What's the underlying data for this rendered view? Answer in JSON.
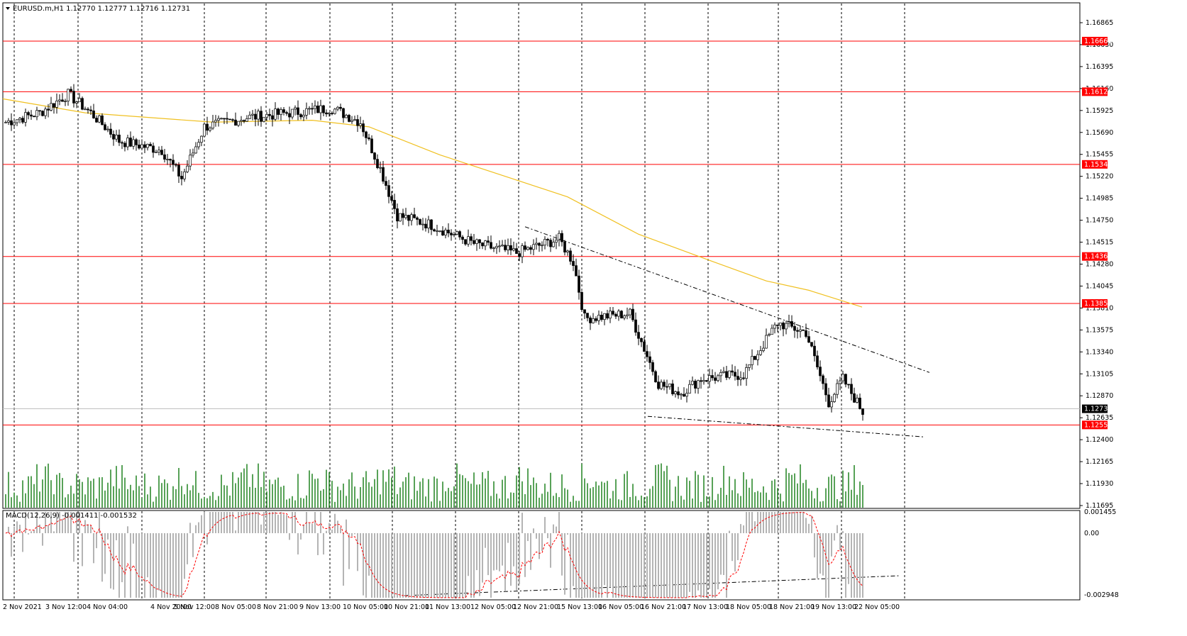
{
  "chart_data": {
    "type": "candlestick",
    "symbol_header": "EURUSD.m,H1  1.12770 1.12777 1.12716 1.12731",
    "price_axis": {
      "min": 1.11695,
      "max": 1.17,
      "tick_labels": [
        "1.16865",
        "1.16630",
        "1.16395",
        "1.16160",
        "1.15925",
        "1.15690",
        "1.15455",
        "1.15220",
        "1.14985",
        "1.14750",
        "1.14515",
        "1.14280",
        "1.14045",
        "1.13810",
        "1.13575",
        "1.13340",
        "1.13105",
        "1.12870",
        "1.12635",
        "1.12400",
        "1.12165",
        "1.11930",
        "1.11695"
      ]
    },
    "horizontal_levels": [
      {
        "price": 1.16668,
        "label": "1.16668",
        "color": "#ff0000"
      },
      {
        "price": 1.16126,
        "label": "1.16126",
        "color": "#ff0000"
      },
      {
        "price": 1.15348,
        "label": "1.15348",
        "color": "#ff0000"
      },
      {
        "price": 1.14362,
        "label": "1.14362",
        "color": "#ff0000"
      },
      {
        "price": 1.13859,
        "label": "1.13859",
        "color": "#ff0000"
      },
      {
        "price": 1.12558,
        "label": "1.12558",
        "color": "#ff0000"
      }
    ],
    "current_price": {
      "price": 1.12731,
      "label": "1.12731"
    },
    "time_labels": [
      "2 Nov 2021",
      "3 Nov 12:00",
      "4 Nov 04:00",
      "4 Nov 20:00",
      "5 Nov 12:00",
      "8 Nov 05:00",
      "8 Nov 21:00",
      "9 Nov 13:00",
      "10 Nov 05:00",
      "10 Nov 21:00",
      "11 Nov 13:00",
      "12 Nov 05:00",
      "12 Nov 21:00",
      "15 Nov 13:00",
      "16 Nov 05:00",
      "16 Nov 21:00",
      "17 Nov 13:00",
      "18 Nov 05:00",
      "18 Nov 21:00",
      "19 Nov 13:00",
      "22 Nov 05:00"
    ],
    "price_path_keypoints": [
      {
        "bar": 0,
        "price": 1.158
      },
      {
        "bar": 12,
        "price": 1.159
      },
      {
        "bar": 22,
        "price": 1.161
      },
      {
        "bar": 30,
        "price": 1.159
      },
      {
        "bar": 40,
        "price": 1.156
      },
      {
        "bar": 55,
        "price": 1.155
      },
      {
        "bar": 62,
        "price": 1.152
      },
      {
        "bar": 70,
        "price": 1.1575
      },
      {
        "bar": 85,
        "price": 1.1585
      },
      {
        "bar": 100,
        "price": 1.159
      },
      {
        "bar": 115,
        "price": 1.1595
      },
      {
        "bar": 125,
        "price": 1.158
      },
      {
        "bar": 132,
        "price": 1.153
      },
      {
        "bar": 138,
        "price": 1.148
      },
      {
        "bar": 150,
        "price": 1.147
      },
      {
        "bar": 165,
        "price": 1.145
      },
      {
        "bar": 180,
        "price": 1.144
      },
      {
        "bar": 195,
        "price": 1.1455
      },
      {
        "bar": 200,
        "price": 1.143
      },
      {
        "bar": 204,
        "price": 1.137
      },
      {
        "bar": 220,
        "price": 1.1375
      },
      {
        "bar": 230,
        "price": 1.13
      },
      {
        "bar": 238,
        "price": 1.129
      },
      {
        "bar": 245,
        "price": 1.1305
      },
      {
        "bar": 260,
        "price": 1.131
      },
      {
        "bar": 272,
        "price": 1.1365
      },
      {
        "bar": 282,
        "price": 1.1355
      },
      {
        "bar": 290,
        "price": 1.128
      },
      {
        "bar": 295,
        "price": 1.1305
      },
      {
        "bar": 302,
        "price": 1.127
      }
    ],
    "moving_average": {
      "color": "#f0c020"
    },
    "macd": {
      "label": "MACD(12,26,9) -0.001411 -0.001532",
      "tick_labels": [
        "0.001455",
        "0.00",
        "-0.002948"
      ],
      "ylim": [
        -0.002948,
        0.001455
      ]
    }
  }
}
